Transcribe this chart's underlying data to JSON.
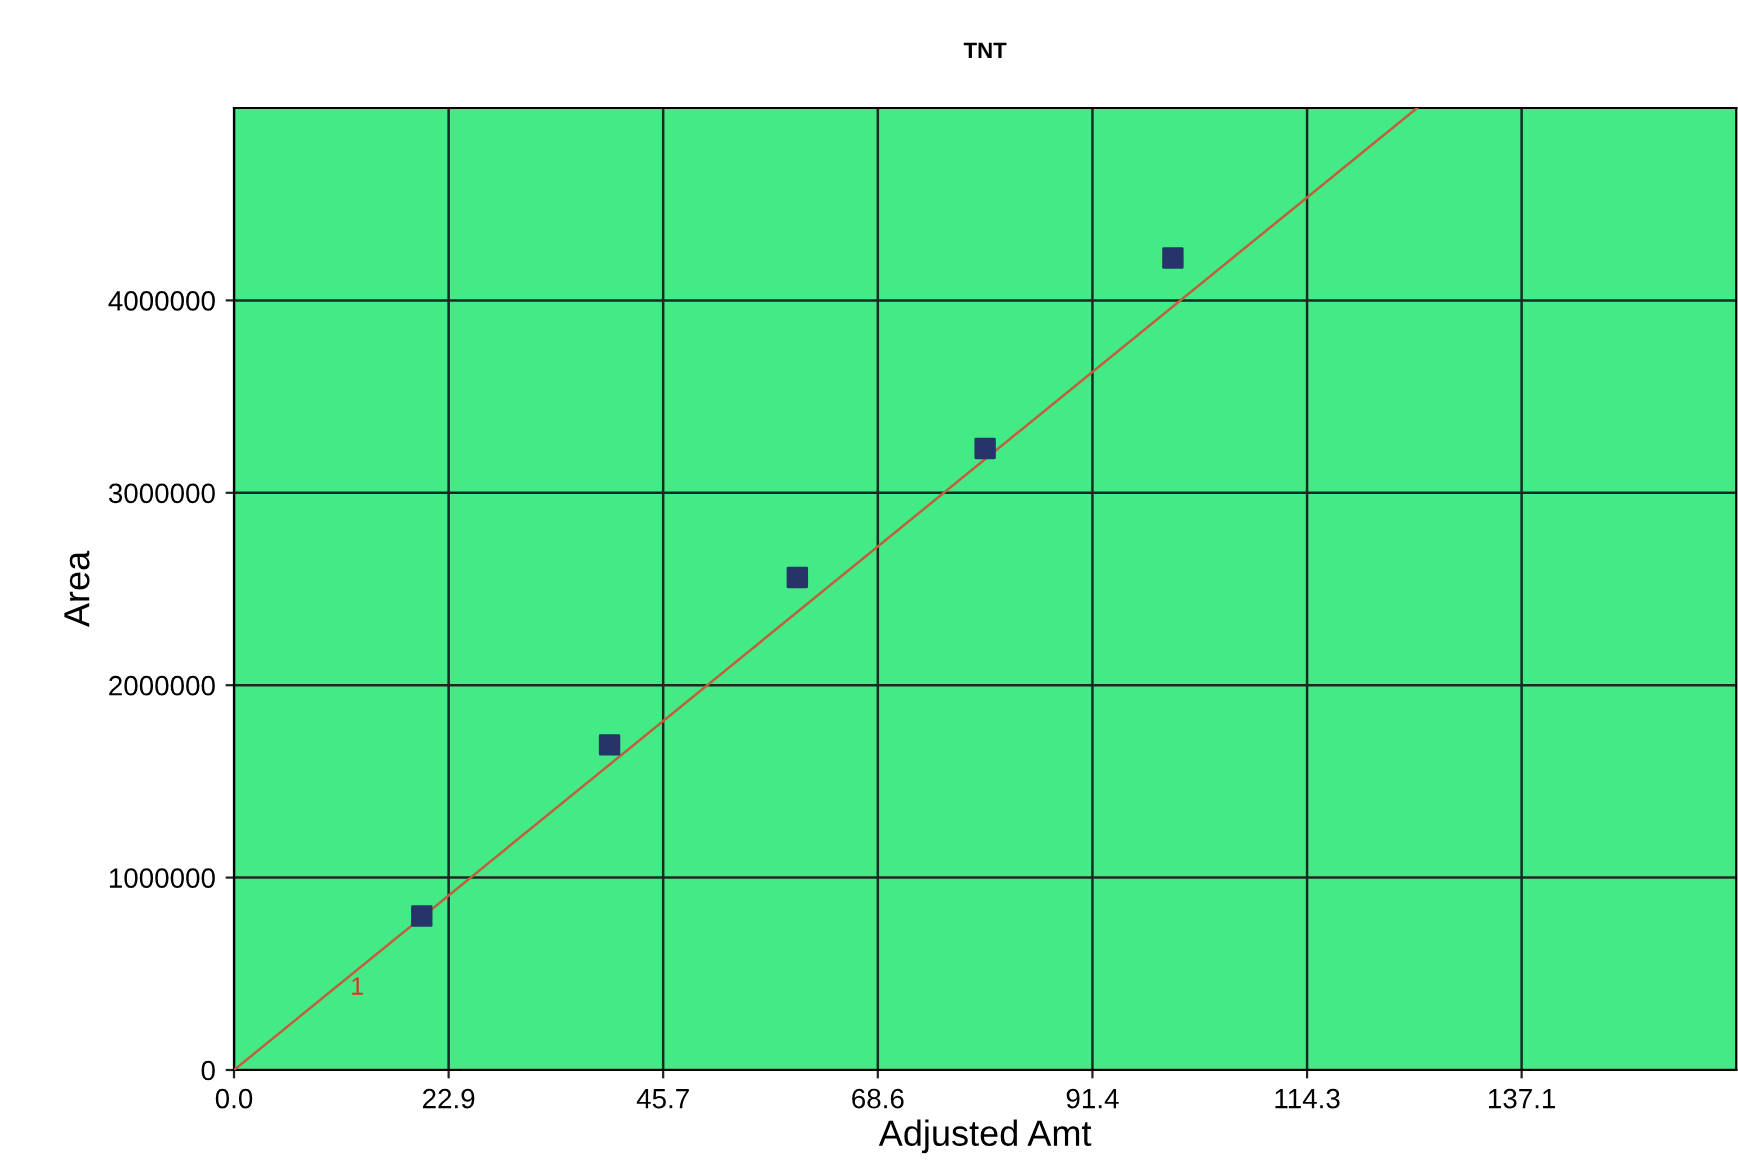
{
  "chart_data": {
    "type": "scatter",
    "title": "TNT",
    "xlabel": "Adjusted Amt",
    "ylabel": "Area",
    "xlim": [
      0,
      160
    ],
    "ylim": [
      0,
      5000000
    ],
    "xticks": [
      {
        "value": 0,
        "label": "0.0"
      },
      {
        "value": 22.86,
        "label": "22.9"
      },
      {
        "value": 45.71,
        "label": "45.7"
      },
      {
        "value": 68.57,
        "label": "68.6"
      },
      {
        "value": 91.43,
        "label": "91.4"
      },
      {
        "value": 114.29,
        "label": "114.3"
      },
      {
        "value": 137.14,
        "label": "137.1"
      }
    ],
    "yticks": [
      0,
      1000000,
      2000000,
      3000000,
      4000000
    ],
    "grid": true,
    "series": [
      {
        "type": "line",
        "color": "#c0603c",
        "x": [
          0,
          126
        ],
        "values": [
          0,
          5000000
        ],
        "marker": "none"
      },
      {
        "color": "#27346a",
        "x": [
          20,
          40,
          60,
          80,
          100
        ],
        "values": [
          800000,
          1690000,
          2560000,
          3230000,
          4220000
        ],
        "marker": "square"
      }
    ],
    "annotations": [
      "1"
    ]
  }
}
